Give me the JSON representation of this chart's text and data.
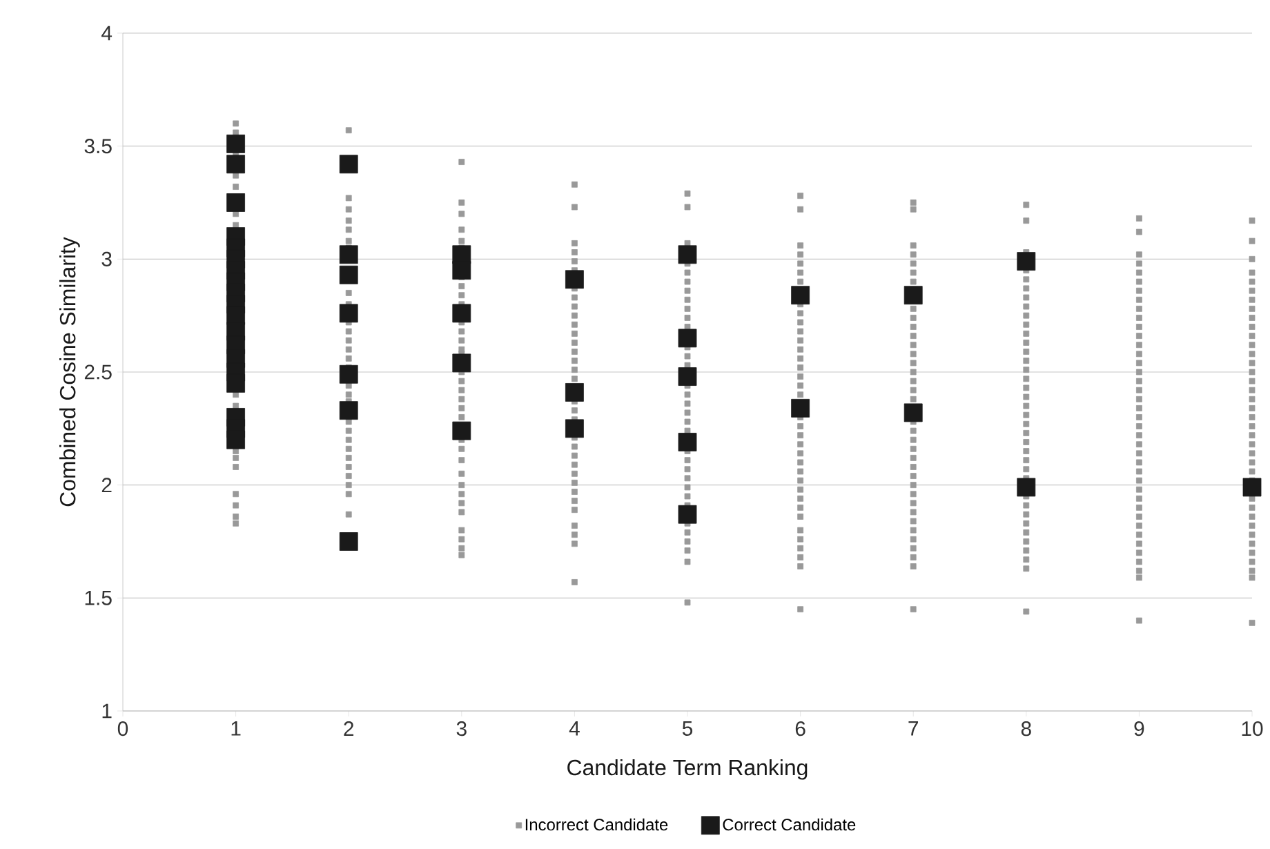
{
  "chart_data": {
    "type": "scatter",
    "xlabel": "Candidate Term Ranking",
    "ylabel": "Combined Cosine Similarity",
    "xlim": [
      0,
      10
    ],
    "xticks": [
      0,
      1,
      2,
      3,
      4,
      5,
      6,
      7,
      8,
      9,
      10
    ],
    "ylim": [
      1,
      4
    ],
    "yticks": [
      1,
      1.5,
      2,
      2.5,
      3,
      3.5,
      4
    ],
    "grid": "y",
    "legend": "bottom",
    "marker": "square",
    "series": [
      {
        "name": "Incorrect Candidate",
        "color": "#999999",
        "x": [
          1,
          1,
          1,
          1,
          1,
          1,
          1,
          1,
          1,
          1,
          1,
          1,
          1,
          1,
          1,
          1,
          2,
          2,
          2,
          2,
          2,
          2,
          2,
          2,
          2,
          2,
          2,
          2,
          2,
          2,
          2,
          2,
          2,
          2,
          2,
          2,
          2,
          2,
          2,
          2,
          2,
          2,
          2,
          2,
          3,
          3,
          3,
          3,
          3,
          3,
          3,
          3,
          3,
          3,
          3,
          3,
          3,
          3,
          3,
          3,
          3,
          3,
          3,
          3,
          3,
          3,
          3,
          3,
          3,
          3,
          3,
          3,
          3,
          3,
          3,
          3,
          3,
          4,
          4,
          4,
          4,
          4,
          4,
          4,
          4,
          4,
          4,
          4,
          4,
          4,
          4,
          4,
          4,
          4,
          4,
          4,
          4,
          4,
          4,
          4,
          4,
          4,
          4,
          4,
          4,
          4,
          4,
          4,
          4,
          4,
          5,
          5,
          5,
          5,
          5,
          5,
          5,
          5,
          5,
          5,
          5,
          5,
          5,
          5,
          5,
          5,
          5,
          5,
          5,
          5,
          5,
          5,
          5,
          5,
          5,
          5,
          5,
          5,
          5,
          5,
          5,
          5,
          5,
          6,
          6,
          6,
          6,
          6,
          6,
          6,
          6,
          6,
          6,
          6,
          6,
          6,
          6,
          6,
          6,
          6,
          6,
          6,
          6,
          6,
          6,
          6,
          6,
          6,
          6,
          6,
          6,
          6,
          6,
          6,
          6,
          6,
          6,
          6,
          6,
          7,
          7,
          7,
          7,
          7,
          7,
          7,
          7,
          7,
          7,
          7,
          7,
          7,
          7,
          7,
          7,
          7,
          7,
          7,
          7,
          7,
          7,
          7,
          7,
          7,
          7,
          7,
          7,
          7,
          7,
          7,
          7,
          7,
          7,
          7,
          7,
          8,
          8,
          8,
          8,
          8,
          8,
          8,
          8,
          8,
          8,
          8,
          8,
          8,
          8,
          8,
          8,
          8,
          8,
          8,
          8,
          8,
          8,
          8,
          8,
          8,
          8,
          8,
          8,
          8,
          8,
          8,
          8,
          8,
          8,
          8,
          8,
          8,
          9,
          9,
          9,
          9,
          9,
          9,
          9,
          9,
          9,
          9,
          9,
          9,
          9,
          9,
          9,
          9,
          9,
          9,
          9,
          9,
          9,
          9,
          9,
          9,
          9,
          9,
          9,
          9,
          9,
          9,
          9,
          9,
          9,
          9,
          9,
          9,
          9,
          9,
          9,
          9,
          10,
          10,
          10,
          10,
          10,
          10,
          10,
          10,
          10,
          10,
          10,
          10,
          10,
          10,
          10,
          10,
          10,
          10,
          10,
          10,
          10,
          10,
          10,
          10,
          10,
          10,
          10,
          10,
          10,
          10,
          10,
          10,
          10,
          10,
          10,
          10,
          10,
          10
        ],
        "values": [
          3.6,
          3.56,
          3.47,
          3.37,
          3.32,
          3.2,
          3.15,
          2.4,
          2.35,
          2.15,
          2.12,
          2.08,
          1.96,
          1.91,
          1.86,
          1.83,
          3.57,
          3.27,
          3.22,
          3.17,
          3.13,
          3.08,
          3.05,
          2.85,
          2.8,
          2.72,
          2.68,
          2.64,
          2.6,
          2.56,
          2.52,
          2.44,
          2.4,
          2.37,
          2.28,
          2.24,
          2.2,
          2.16,
          2.12,
          2.08,
          2.04,
          2.0,
          1.96,
          1.87,
          3.43,
          3.25,
          3.2,
          3.13,
          3.08,
          3.05,
          2.92,
          2.88,
          2.84,
          2.8,
          2.72,
          2.68,
          2.64,
          2.6,
          2.58,
          2.5,
          2.46,
          2.42,
          2.38,
          2.34,
          2.3,
          2.2,
          2.16,
          2.11,
          2.05,
          2.0,
          1.96,
          1.92,
          1.88,
          1.8,
          1.76,
          1.72,
          1.69,
          3.33,
          3.23,
          3.07,
          3.03,
          2.99,
          2.95,
          2.87,
          2.83,
          2.79,
          2.75,
          2.71,
          2.67,
          2.63,
          2.59,
          2.55,
          2.51,
          2.47,
          2.37,
          2.33,
          2.29,
          2.21,
          2.17,
          2.13,
          2.09,
          2.05,
          2.01,
          1.97,
          1.93,
          1.89,
          1.82,
          1.78,
          1.74,
          1.57,
          3.29,
          3.23,
          3.07,
          2.98,
          2.94,
          2.9,
          2.86,
          2.82,
          2.78,
          2.74,
          2.7,
          2.61,
          2.57,
          2.53,
          2.44,
          2.4,
          2.36,
          2.32,
          2.28,
          2.24,
          2.15,
          2.11,
          2.07,
          2.03,
          1.99,
          1.95,
          1.91,
          1.83,
          1.79,
          1.75,
          1.71,
          1.66,
          1.48,
          3.28,
          3.22,
          3.06,
          3.02,
          2.98,
          2.94,
          2.9,
          2.8,
          2.76,
          2.72,
          2.68,
          2.64,
          2.6,
          2.56,
          2.52,
          2.48,
          2.44,
          2.4,
          2.3,
          2.26,
          2.22,
          2.18,
          2.14,
          2.1,
          2.06,
          2.02,
          1.98,
          1.94,
          1.9,
          1.86,
          1.8,
          1.76,
          1.72,
          1.68,
          1.64,
          1.45,
          3.25,
          3.22,
          3.06,
          3.02,
          2.98,
          2.94,
          2.9,
          2.78,
          2.74,
          2.7,
          2.66,
          2.62,
          2.58,
          2.54,
          2.5,
          2.46,
          2.42,
          2.38,
          2.28,
          2.24,
          2.2,
          2.16,
          2.12,
          2.08,
          2.04,
          2.0,
          1.96,
          1.92,
          1.88,
          1.84,
          1.8,
          1.76,
          1.72,
          1.68,
          1.64,
          1.45,
          3.24,
          3.17,
          3.03,
          2.95,
          2.91,
          2.87,
          2.83,
          2.79,
          2.75,
          2.71,
          2.67,
          2.63,
          2.59,
          2.55,
          2.51,
          2.47,
          2.43,
          2.39,
          2.35,
          2.31,
          2.27,
          2.23,
          2.19,
          2.15,
          2.11,
          2.07,
          2.03,
          1.95,
          1.91,
          1.87,
          1.83,
          1.79,
          1.75,
          1.71,
          1.67,
          1.63,
          1.44,
          3.18,
          3.12,
          3.02,
          2.98,
          2.94,
          2.9,
          2.86,
          2.82,
          2.78,
          2.74,
          2.7,
          2.66,
          2.62,
          2.58,
          2.54,
          2.5,
          2.46,
          2.42,
          2.38,
          2.34,
          2.3,
          2.26,
          2.22,
          2.18,
          2.14,
          2.1,
          2.06,
          2.02,
          1.98,
          1.94,
          1.9,
          1.86,
          1.82,
          1.78,
          1.74,
          1.7,
          1.66,
          1.62,
          1.59,
          1.4,
          3.17,
          3.08,
          3.0,
          2.94,
          2.9,
          2.86,
          2.82,
          2.78,
          2.74,
          2.7,
          2.66,
          2.62,
          2.58,
          2.54,
          2.5,
          2.46,
          2.42,
          2.38,
          2.34,
          2.3,
          2.26,
          2.22,
          2.18,
          2.14,
          2.1,
          2.06,
          2.02,
          1.94,
          1.9,
          1.86,
          1.82,
          1.78,
          1.74,
          1.7,
          1.66,
          1.62,
          1.59,
          1.39
        ]
      },
      {
        "name": "Correct Candidate",
        "color": "#1a1a1a",
        "x": [
          1,
          1,
          1,
          1,
          1,
          1,
          1,
          1,
          1,
          1,
          1,
          1,
          1,
          1,
          1,
          1,
          1,
          1,
          1,
          2,
          2,
          2,
          2,
          2,
          2,
          2,
          3,
          3,
          3,
          3,
          3,
          4,
          4,
          4,
          5,
          5,
          5,
          5,
          5,
          6,
          6,
          7,
          7,
          8,
          8,
          10
        ],
        "values": [
          3.51,
          3.42,
          3.25,
          3.1,
          3.05,
          3.0,
          2.95,
          2.9,
          2.85,
          2.8,
          2.75,
          2.68,
          2.62,
          2.56,
          2.5,
          2.45,
          2.3,
          2.25,
          2.2,
          3.42,
          3.02,
          2.93,
          2.76,
          2.49,
          2.33,
          1.75,
          3.02,
          2.95,
          2.76,
          2.54,
          2.24,
          2.91,
          2.41,
          2.25,
          3.02,
          2.65,
          2.48,
          2.19,
          1.87,
          2.84,
          2.34,
          2.84,
          2.32,
          2.99,
          1.99,
          1.99
        ]
      }
    ]
  }
}
